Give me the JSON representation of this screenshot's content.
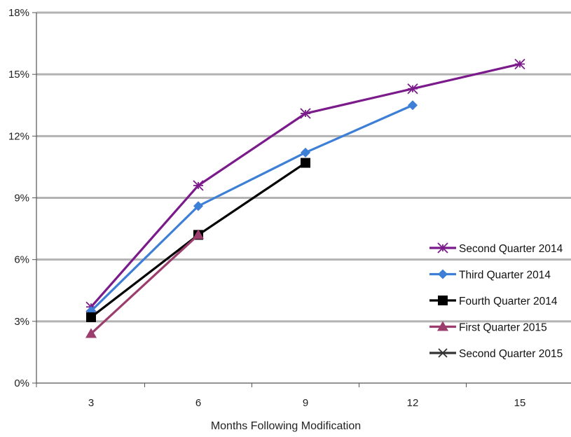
{
  "chart_data": {
    "type": "line",
    "title": "",
    "xlabel": "Months Following Modification",
    "ylabel": "",
    "x": [
      3,
      6,
      9,
      12,
      15
    ],
    "x_tick_labels": [
      "3",
      "6",
      "9",
      "12",
      "15"
    ],
    "y_tick_labels": [
      "0%",
      "3%",
      "6%",
      "9%",
      "12%",
      "15%",
      "18%"
    ],
    "y_ticks": [
      0,
      3,
      6,
      9,
      12,
      15,
      18
    ],
    "ylim": [
      0,
      18
    ],
    "grid": "horizontal",
    "legend_position": "right",
    "series": [
      {
        "name": "Second Quarter 2014",
        "color": "#7b1a8a",
        "marker": "asterisk",
        "values": [
          3.7,
          9.6,
          13.1,
          14.3,
          15.5
        ]
      },
      {
        "name": "Third Quarter 2014",
        "color": "#3d7fd6",
        "marker": "diamond",
        "values": [
          3.5,
          8.6,
          11.2,
          13.5,
          null
        ]
      },
      {
        "name": "Fourth Quarter 2014",
        "color": "#000000",
        "marker": "square",
        "values": [
          3.2,
          7.2,
          10.7,
          null,
          null
        ]
      },
      {
        "name": "First Quarter 2015",
        "color": "#9b3e6e",
        "marker": "triangle",
        "values": [
          2.4,
          7.2,
          null,
          null,
          null
        ]
      },
      {
        "name": "Second Quarter 2015",
        "color": "#333333",
        "marker": "x",
        "values": [
          null,
          null,
          null,
          null,
          null
        ]
      }
    ]
  }
}
